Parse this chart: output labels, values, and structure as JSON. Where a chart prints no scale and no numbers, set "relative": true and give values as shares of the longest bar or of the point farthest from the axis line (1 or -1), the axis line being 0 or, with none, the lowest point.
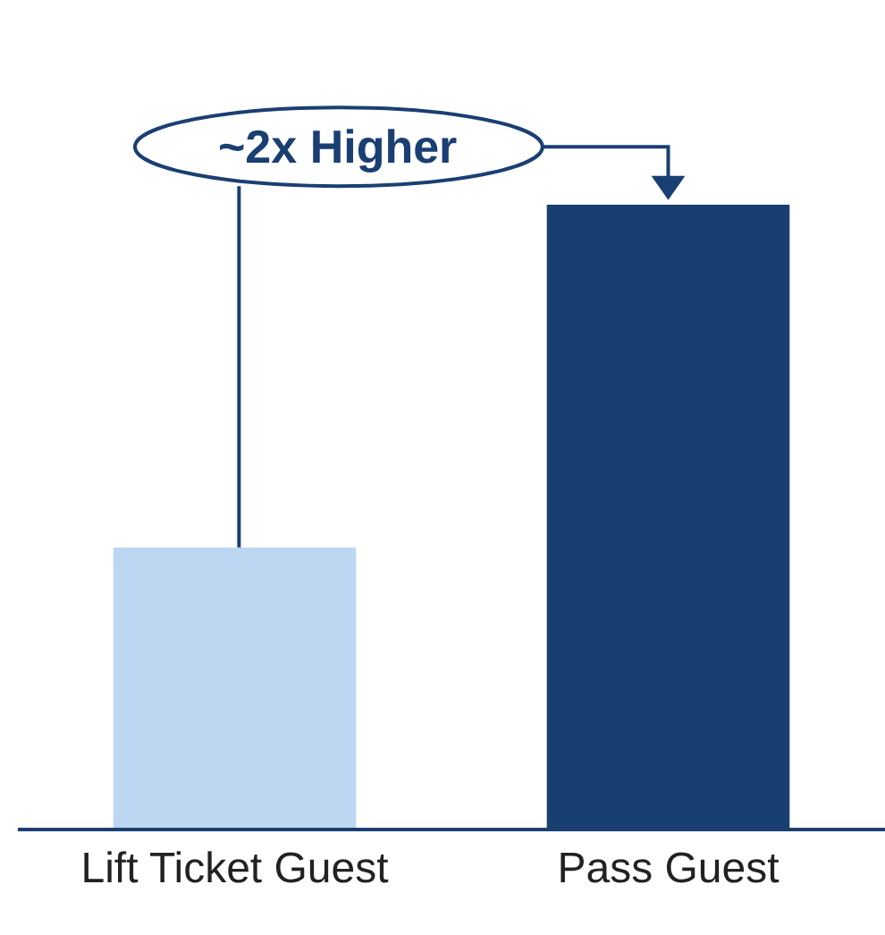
{
  "chart_data": {
    "type": "bar",
    "relative": true,
    "categories": [
      "Lift Ticket Guest",
      "Pass Guest"
    ],
    "values": [
      0.45,
      1
    ],
    "colors": [
      "#bdd7f2",
      "#173f72"
    ],
    "annotations": [
      "~2x Higher"
    ]
  }
}
